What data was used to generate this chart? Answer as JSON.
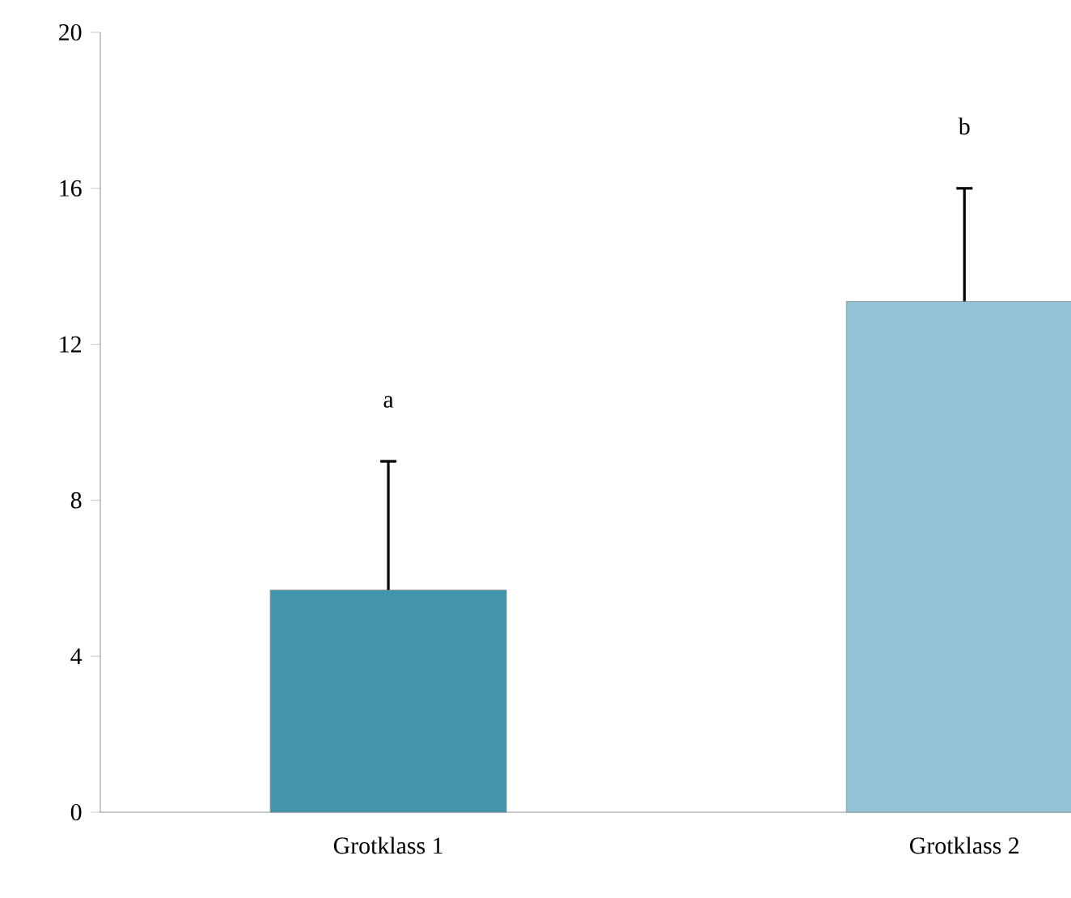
{
  "chart_data": {
    "type": "bar",
    "categories": [
      "Grotklass 1",
      "Grotklass 2"
    ],
    "values": [
      5.7,
      13.1
    ],
    "colors": [
      "#4395ad",
      "#92c4d6"
    ],
    "errors": [
      [
        5.7,
        9.0
      ],
      [
        13.1,
        16.0
      ]
    ],
    "ylim": [
      0,
      20
    ],
    "yticks": [
      0,
      4,
      8,
      12,
      16,
      20
    ],
    "grid": false,
    "annotations": [
      "a",
      "b"
    ]
  }
}
